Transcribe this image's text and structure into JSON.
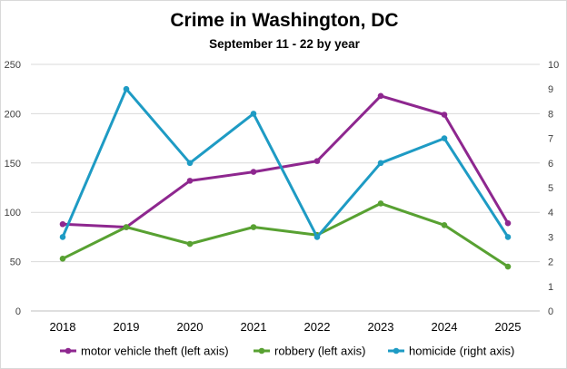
{
  "chart_data": {
    "type": "line",
    "title": "Crime in Washington, DC",
    "subtitle": "September 11 - 22 by year",
    "categories": [
      "2018",
      "2019",
      "2020",
      "2021",
      "2022",
      "2023",
      "2024",
      "2025"
    ],
    "ylim_left": [
      0,
      250
    ],
    "yticks_left": [
      "0",
      "50",
      "100",
      "150",
      "200",
      "250"
    ],
    "ylim_right": [
      0,
      10
    ],
    "yticks_right": [
      "0",
      "1",
      "2",
      "3",
      "4",
      "5",
      "6",
      "7",
      "8",
      "9",
      "10"
    ],
    "grid": true,
    "legend_position": "bottom",
    "series": [
      {
        "name": "motor vehicle theft (left axis)",
        "axis": "left",
        "color": "#8e278f",
        "values": [
          88,
          85,
          132,
          141,
          152,
          218,
          199,
          89
        ]
      },
      {
        "name": "robbery (left axis)",
        "axis": "left",
        "color": "#58a132",
        "values": [
          53,
          85,
          68,
          85,
          77,
          109,
          87,
          45
        ]
      },
      {
        "name": "homicide (right axis)",
        "axis": "right",
        "color": "#1e9bc4",
        "values": [
          3,
          9,
          6,
          8,
          3,
          6,
          7,
          3
        ]
      }
    ]
  }
}
